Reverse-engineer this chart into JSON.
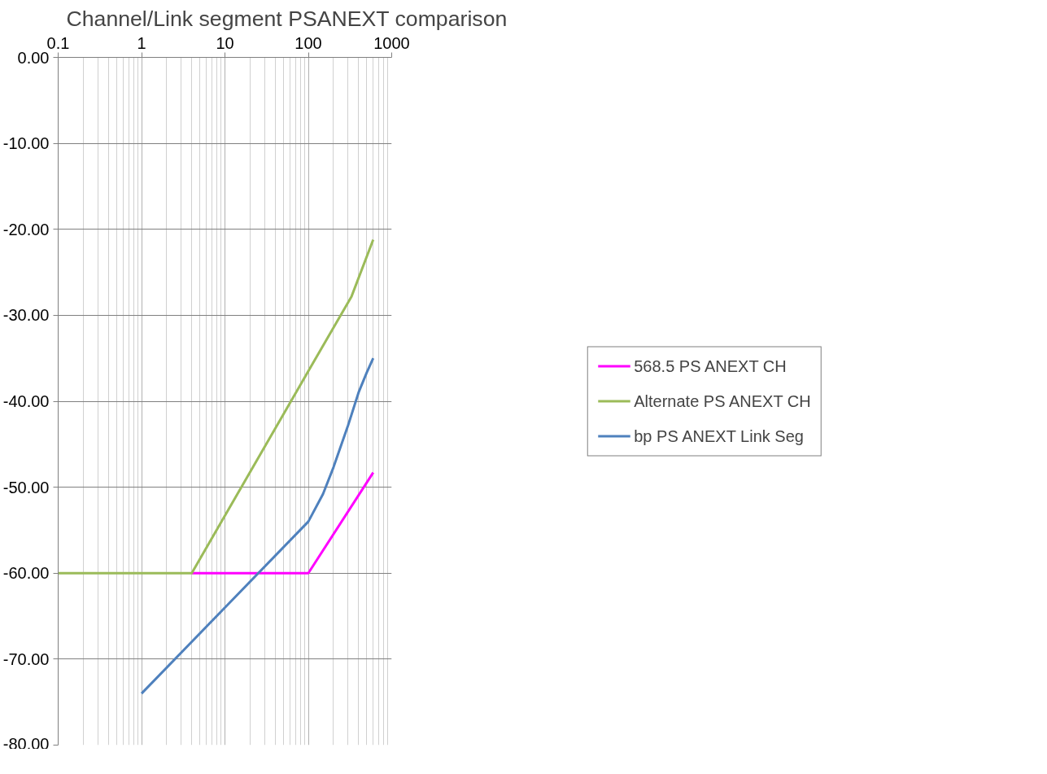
{
  "chart_data": {
    "type": "line",
    "title": "Channel/Link segment PSANEXT comparison",
    "log": "x",
    "xlim": [
      0.1,
      1000
    ],
    "xticks": [
      0.1,
      1,
      10,
      100,
      1000
    ],
    "ylim": [
      -80,
      0
    ],
    "yticks": [
      {
        "value": -80,
        "label": "-80.00"
      },
      {
        "value": -70,
        "label": "-70.00"
      },
      {
        "value": -60,
        "label": "-60.00"
      },
      {
        "value": -50,
        "label": "-50.00"
      },
      {
        "value": -40,
        "label": "-40.00"
      },
      {
        "value": -30,
        "label": "-30.00"
      },
      {
        "value": -20,
        "label": "-20.00"
      },
      {
        "value": -10,
        "label": "-10.00"
      },
      {
        "value": 0,
        "label": "0.00"
      }
    ],
    "grid": true,
    "legend": "right",
    "marker": "none",
    "line_style": "solid",
    "series": [
      {
        "name": "568.5 PS ANEXT CH",
        "color": "#ff00ff",
        "x": [
          4,
          100,
          600
        ],
        "values": [
          -60,
          -60,
          -48.3
        ]
      },
      {
        "name": "Alternate PS ANEXT CH",
        "color": "#9bbb59",
        "x": [
          0.1,
          4,
          100,
          330,
          600
        ],
        "values": [
          -60,
          -60,
          -36.5,
          -27.8,
          -21.2
        ]
      },
      {
        "name": "bp PS ANEXT Link Seg",
        "color": "#4f81bd",
        "x": [
          1,
          10,
          100,
          150,
          200,
          300,
          400,
          500,
          600
        ],
        "values": [
          -74,
          -64,
          -54,
          -50.8,
          -47.7,
          -42.8,
          -39,
          -36.7,
          -35
        ]
      }
    ]
  }
}
